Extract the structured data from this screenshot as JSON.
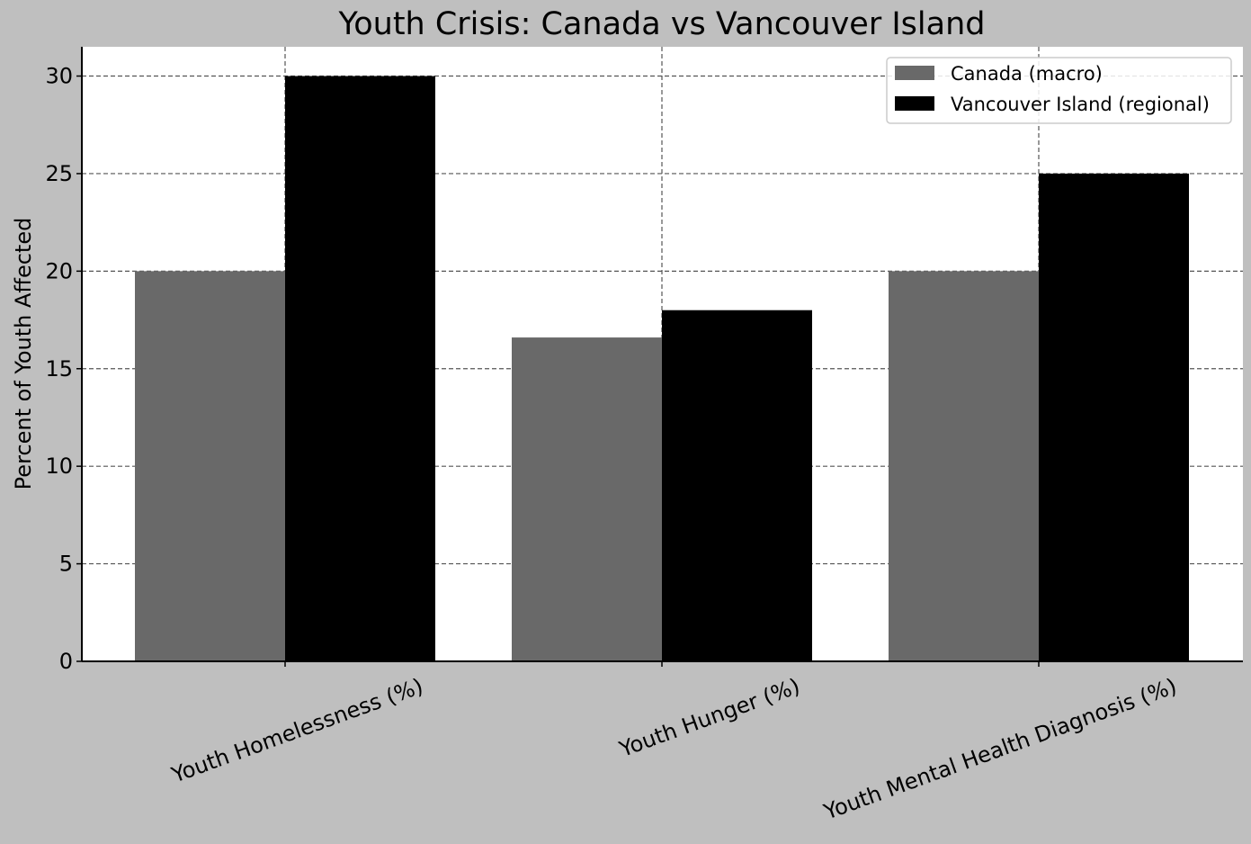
{
  "chart_data": {
    "type": "bar",
    "title": "Youth Crisis: Canada vs Vancouver Island",
    "xlabel": "",
    "ylabel": "Percent of Youth Affected",
    "categories": [
      "Youth Homelessness (%)",
      "Youth Hunger (%)",
      "Youth Mental Health Diagnosis (%)"
    ],
    "series": [
      {
        "name": "Canada (macro)",
        "values": [
          20,
          16.6,
          20
        ],
        "color": "#696969"
      },
      {
        "name": "Vancouver Island (regional)",
        "values": [
          30,
          18,
          25
        ],
        "color": "#000000"
      }
    ],
    "ylim": [
      0,
      31.5
    ],
    "yticks": [
      0,
      5,
      10,
      15,
      20,
      25,
      30
    ],
    "grid": true,
    "legend_position": "top-right",
    "background": "#bfbfbf",
    "plot_background": "#ffffff"
  }
}
